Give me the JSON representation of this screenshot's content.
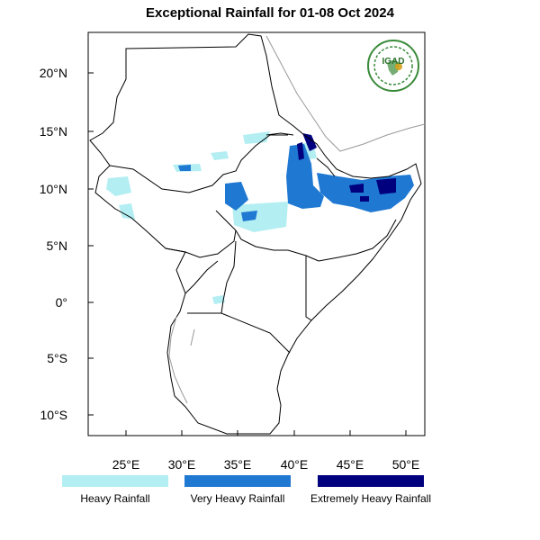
{
  "title": "Exceptional Rainfall for 01-08 Oct 2024",
  "logo": {
    "text": "IGAD",
    "ring_color": "#3a8a3a",
    "accent_color": "#d4a017"
  },
  "map": {
    "lon_range": [
      21.5,
      52.0
    ],
    "lat_range": [
      -12.0,
      24.5
    ],
    "lat_ticks": [
      {
        "value": 20,
        "label": "20°N"
      },
      {
        "value": 15,
        "label": "15°N"
      },
      {
        "value": 10,
        "label": "10°N"
      },
      {
        "value": 5,
        "label": "5°N"
      },
      {
        "value": 0,
        "label": "0°"
      },
      {
        "value": -5,
        "label": "5°S"
      },
      {
        "value": -10,
        "label": "10°S"
      }
    ],
    "lon_ticks": [
      {
        "value": 25,
        "label": "25°E"
      },
      {
        "value": 30,
        "label": "30°E"
      },
      {
        "value": 35,
        "label": "35°E"
      },
      {
        "value": 40,
        "label": "40°E"
      },
      {
        "value": 45,
        "label": "45°E"
      },
      {
        "value": 50,
        "label": "50°E"
      }
    ]
  },
  "legend": [
    {
      "label": "Heavy Rainfall",
      "color": "#b3eef2"
    },
    {
      "label": "Very Heavy Rainfall",
      "color": "#1f78d1"
    },
    {
      "label": "Extremely Heavy Rainfall",
      "color": "#00007f"
    }
  ]
}
